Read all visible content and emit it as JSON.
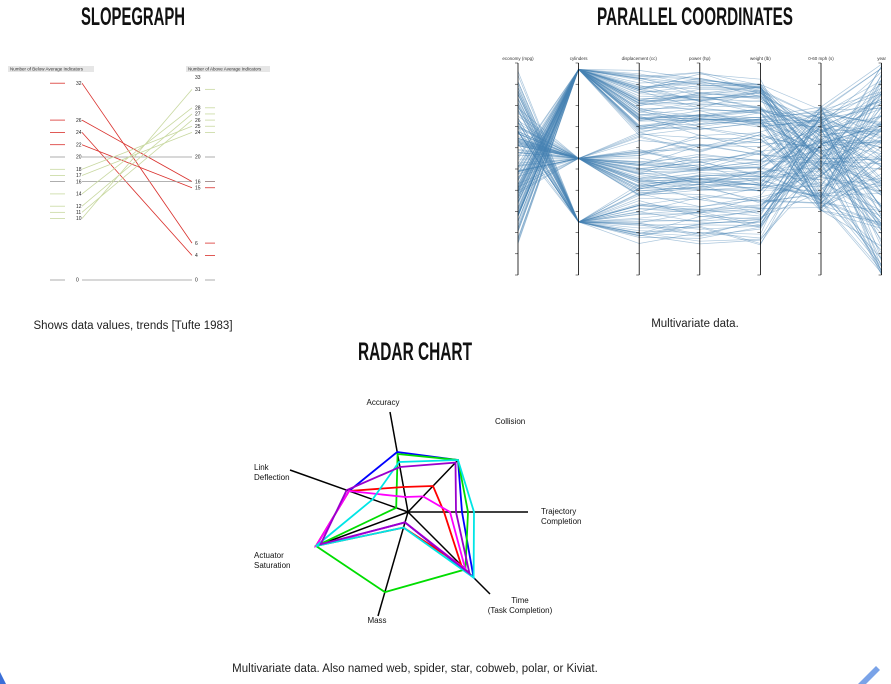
{
  "slopegraph": {
    "title": "SLOPEGRAPH",
    "left_header": "Number of Below Average Indicators",
    "right_header": "Number of Above Average Indicators",
    "left_values": [
      "32",
      "26",
      "24",
      "22",
      "20",
      "18",
      "17",
      "16",
      "14",
      "12",
      "11",
      "10",
      "0"
    ],
    "right_values": [
      "33",
      "31",
      "28",
      "27",
      "26",
      "25",
      "24",
      "20",
      "16",
      "15",
      "6",
      "4",
      "0"
    ],
    "caption": "Shows data values, trends [Tufte 1983]"
  },
  "parallel": {
    "title": "PARALLEL COORDINATES",
    "axes": [
      "economy (mpg)",
      "cylinders",
      "displacement (cc)",
      "power (hp)",
      "weight (lb)",
      "0-60 mph (s)",
      "year"
    ],
    "caption": "Multivariate data."
  },
  "radar": {
    "title": "RADAR CHART",
    "axes": [
      [
        "Accuracy"
      ],
      [
        "Collision"
      ],
      [
        "Trajectory",
        "Completion"
      ],
      [
        "Time",
        "(Task Completion)"
      ],
      [
        "Mass"
      ],
      [
        "Actuator",
        "Saturation"
      ],
      [
        "Link",
        "Deflection"
      ]
    ],
    "caption": "Multivariate data. Also named web, spider, star, cobweb, polar, or Kiviat."
  }
}
